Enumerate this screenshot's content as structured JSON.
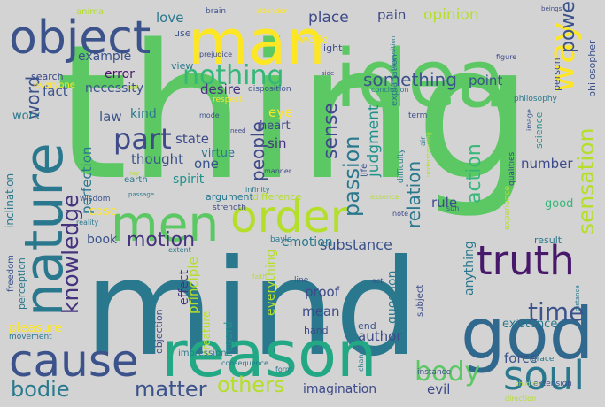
{
  "background_color": "#d3d3d3",
  "words": [
    {
      "text": "thing",
      "color": "#5cc863"
    },
    {
      "text": "mind",
      "color": "#2a788e"
    },
    {
      "text": "idea",
      "color": "#5cc863"
    },
    {
      "text": "man",
      "color": "#fde725"
    },
    {
      "text": "reason",
      "color": "#22a884"
    },
    {
      "text": "god",
      "color": "#31688e"
    },
    {
      "text": "object",
      "color": "#3b528b"
    },
    {
      "text": "nature",
      "color": "#2a788e"
    },
    {
      "text": "cause",
      "color": "#3b528b"
    },
    {
      "text": "men",
      "color": "#5cc863"
    },
    {
      "text": "order",
      "color": "#b5de2b"
    },
    {
      "text": "truth",
      "color": "#48186a"
    },
    {
      "text": "soul",
      "color": "#2a788e"
    },
    {
      "text": "way",
      "color": "#fde725"
    },
    {
      "text": "nothing",
      "color": "#35b779"
    },
    {
      "text": "part",
      "color": "#3e4a89"
    },
    {
      "text": "body",
      "color": "#5cc863"
    },
    {
      "text": "bodie",
      "color": "#2a788e"
    },
    {
      "text": "matter",
      "color": "#3b528b"
    },
    {
      "text": "others",
      "color": "#b5de2b"
    },
    {
      "text": "time",
      "color": "#3b528b"
    },
    {
      "text": "knowledge",
      "color": "#46337e"
    },
    {
      "text": "sensation",
      "color": "#b5de2b"
    },
    {
      "text": "sense",
      "color": "#3e4a89"
    },
    {
      "text": "passion",
      "color": "#2a788e"
    },
    {
      "text": "action",
      "color": "#35b779"
    },
    {
      "text": "power",
      "color": "#3b528b"
    },
    {
      "text": "word",
      "color": "#3b528b"
    },
    {
      "text": "people",
      "color": "#3e4a89"
    },
    {
      "text": "motion",
      "color": "#46337e"
    },
    {
      "text": "relation",
      "color": "#2a788e"
    },
    {
      "text": "judgment",
      "color": "#21918c"
    },
    {
      "text": "something",
      "color": "#3b528b"
    },
    {
      "text": "opinion",
      "color": "#b5de2b"
    },
    {
      "text": "place",
      "color": "#3e4a89"
    },
    {
      "text": "pain",
      "color": "#3e4a89"
    },
    {
      "text": "love",
      "color": "#2a788e"
    },
    {
      "text": "fact",
      "color": "#3b528b"
    },
    {
      "text": "example",
      "color": "#3b528b"
    },
    {
      "text": "error",
      "color": "#48186a"
    },
    {
      "text": "necessity",
      "color": "#3b528b"
    },
    {
      "text": "desire",
      "color": "#46337e"
    },
    {
      "text": "perfection",
      "color": "#2a788e"
    },
    {
      "text": "thought",
      "color": "#3b528b"
    },
    {
      "text": "state",
      "color": "#3e4a89"
    },
    {
      "text": "one",
      "color": "#3b528b"
    },
    {
      "text": "spirit",
      "color": "#21918c"
    },
    {
      "text": "virtue",
      "color": "#2a788e"
    },
    {
      "text": "heart",
      "color": "#3e4a89"
    },
    {
      "text": "eye",
      "color": "#fde725"
    },
    {
      "text": "sin",
      "color": "#46337e"
    },
    {
      "text": "law",
      "color": "#3b528b"
    },
    {
      "text": "kind",
      "color": "#2a788e"
    },
    {
      "text": "point",
      "color": "#3b528b"
    },
    {
      "text": "number",
      "color": "#3e4a89"
    },
    {
      "text": "rule",
      "color": "#3e4a89"
    },
    {
      "text": "substance",
      "color": "#3b528b"
    },
    {
      "text": "emotion",
      "color": "#2a788e"
    },
    {
      "text": "principle",
      "color": "#b5de2b"
    },
    {
      "text": "everything",
      "color": "#b5de2b"
    },
    {
      "text": "effect",
      "color": "#46337e"
    },
    {
      "text": "book",
      "color": "#3b528b"
    },
    {
      "text": "case",
      "color": "#fde725"
    },
    {
      "text": "force",
      "color": "#3b528b"
    },
    {
      "text": "existence",
      "color": "#2a788e"
    },
    {
      "text": "author",
      "color": "#3e4a89"
    },
    {
      "text": "evil",
      "color": "#3e4a89"
    },
    {
      "text": "imagination",
      "color": "#3e4a89"
    },
    {
      "text": "proof",
      "color": "#3e4a89"
    },
    {
      "text": "mean",
      "color": "#3e4a89"
    },
    {
      "text": "question",
      "color": "#2a788e"
    },
    {
      "text": "anything",
      "color": "#2a788e"
    },
    {
      "text": "pleasure",
      "color": "#fde725"
    },
    {
      "text": "work",
      "color": "#2a788e"
    },
    {
      "text": "science",
      "color": "#21918c"
    },
    {
      "text": "good",
      "color": "#35b779"
    },
    {
      "text": "result",
      "color": "#2a788e"
    },
    {
      "text": "hand",
      "color": "#3e4a89"
    },
    {
      "text": "end",
      "color": "#3b528b"
    },
    {
      "text": "subject",
      "color": "#3e4a89"
    },
    {
      "text": "instance",
      "color": "#3b528b"
    },
    {
      "text": "grace",
      "color": "#2a788e"
    },
    {
      "text": "extension",
      "color": "#3b528b"
    },
    {
      "text": "world",
      "color": "#fde725"
    },
    {
      "text": "light",
      "color": "#3e4a89"
    },
    {
      "text": "person",
      "color": "#3b528b"
    },
    {
      "text": "philosopher",
      "color": "#3b528b"
    },
    {
      "text": "explanation",
      "color": "#2a788e"
    },
    {
      "text": "conclusion",
      "color": "#2a788e"
    },
    {
      "text": "philosophy",
      "color": "#2a788e"
    },
    {
      "text": "disposition",
      "color": "#3b528b"
    },
    {
      "text": "respect",
      "color": "#fde725"
    },
    {
      "text": "manner",
      "color": "#3e4a89"
    },
    {
      "text": "infinity",
      "color": "#2a788e"
    },
    {
      "text": "argument",
      "color": "#2a788e"
    },
    {
      "text": "difference",
      "color": "#b5de2b"
    },
    {
      "text": "strength",
      "color": "#3e4a89"
    },
    {
      "text": "wisdom",
      "color": "#3b528b"
    },
    {
      "text": "reality",
      "color": "#2a788e"
    },
    {
      "text": "bayle",
      "color": "#2a788e"
    },
    {
      "text": "extent",
      "color": "#2a788e"
    },
    {
      "text": "inclination",
      "color": "#2a788e"
    },
    {
      "text": "freedom",
      "color": "#3b528b"
    },
    {
      "text": "perception",
      "color": "#2a788e"
    },
    {
      "text": "movement",
      "color": "#2a788e"
    },
    {
      "text": "creature",
      "color": "#b5de2b"
    },
    {
      "text": "regard",
      "color": "#21918c"
    },
    {
      "text": "impression",
      "color": "#2a788e"
    },
    {
      "text": "consequence",
      "color": "#2a788e"
    },
    {
      "text": "objection",
      "color": "#3e4a89"
    },
    {
      "text": "form",
      "color": "#2a788e"
    },
    {
      "text": "line",
      "color": "#3b528b"
    },
    {
      "text": "act",
      "color": "#3b528b"
    },
    {
      "text": "change",
      "color": "#2a788e"
    },
    {
      "text": "difficulty",
      "color": "#2a788e"
    },
    {
      "text": "life",
      "color": "#3b528b"
    },
    {
      "text": "essence",
      "color": "#b5de2b"
    },
    {
      "text": "term",
      "color": "#3e4a89"
    },
    {
      "text": "image",
      "color": "#3b528b"
    },
    {
      "text": "qualities",
      "color": "#3e4a89"
    },
    {
      "text": "experience",
      "color": "#b5de2b"
    },
    {
      "text": "sun",
      "color": "#3b528b"
    },
    {
      "text": "note",
      "color": "#3e4a89"
    },
    {
      "text": "distance",
      "color": "#2a788e"
    },
    {
      "text": "children",
      "color": "#b5de2b"
    },
    {
      "text": "direction",
      "color": "#b5de2b"
    },
    {
      "text": "figure",
      "color": "#3e4a89"
    },
    {
      "text": "beings",
      "color": "#3e4a89"
    },
    {
      "text": "animal",
      "color": "#b5de2b"
    },
    {
      "text": "brain",
      "color": "#3b528b"
    },
    {
      "text": "attention",
      "color": "#fde725"
    },
    {
      "text": "use",
      "color": "#3b528b"
    },
    {
      "text": "view",
      "color": "#2a788e"
    },
    {
      "text": "prejudice",
      "color": "#3e4a89"
    },
    {
      "text": "search",
      "color": "#3e4a89"
    },
    {
      "text": "everyone",
      "color": "#fde725"
    },
    {
      "text": "mode",
      "color": "#3b528b"
    },
    {
      "text": "earth",
      "color": "#2a788e"
    },
    {
      "text": "need",
      "color": "#3e4a89"
    },
    {
      "text": "side",
      "color": "#3e4a89"
    },
    {
      "text": "air",
      "color": "#2a788e"
    },
    {
      "text": "proposition",
      "color": "#2a788e"
    },
    {
      "text": "understanding",
      "color": "#b5de2b"
    },
    {
      "text": "passage",
      "color": "#2a788e"
    },
    {
      "text": "faith",
      "color": "#b5de2b"
    },
    {
      "text": "sort",
      "color": "#b5de2b"
    },
    {
      "text": "ray",
      "color": "#b5de2b"
    }
  ]
}
